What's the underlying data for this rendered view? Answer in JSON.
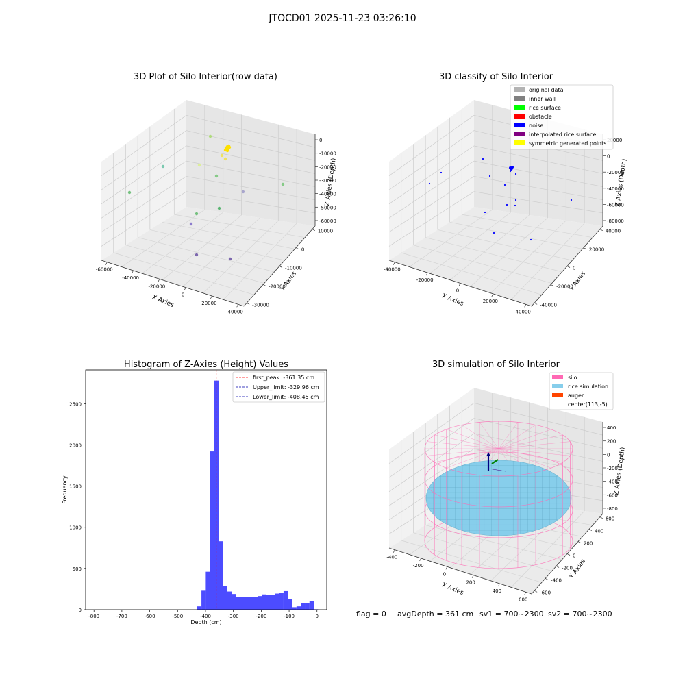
{
  "figure": {
    "suptitle": "JTOCD01 2025-11-23 03:26:10",
    "footer": {
      "flag": "flag = 0",
      "avg": "avgDepth = 361 cm",
      "sv1": "sv1 = 700~2300",
      "sv2": "sv2 = 700~2300"
    }
  },
  "chart_data": [
    {
      "type": "scatter3d",
      "title": "3D Plot of Silo Interior(row data)",
      "xlabel": "X Axies",
      "ylabel": "Y Axies",
      "zlabel": "Z Axies (Depth)",
      "x_ticks": [
        -60000,
        -40000,
        -20000,
        0,
        20000,
        40000
      ],
      "y_ticks": [
        -30000,
        -20000,
        -10000,
        0,
        10000
      ],
      "z_ticks": [
        -60000,
        -50000,
        -40000,
        -30000,
        -20000,
        -10000,
        0
      ],
      "point_colors": [
        "#5fb96b",
        "#66c2a5",
        "#a6d96a",
        "#d9ef8b",
        "#74c476",
        "#41ab5d",
        "#7b68c8",
        "#6a51a3",
        "#9e9ac8",
        "#f1e04a",
        "#fee000"
      ]
    },
    {
      "type": "scatter3d",
      "title": "3D classify of Silo Interior",
      "xlabel": "X Axies",
      "ylabel": "Y Axies",
      "zlabel": "Z Axies (Depth)",
      "x_ticks": [
        -40000,
        -20000,
        0,
        20000,
        40000
      ],
      "y_ticks": [
        -40000,
        -20000,
        0,
        20000,
        40000
      ],
      "z_ticks": [
        -80000,
        -60000,
        -40000,
        -20000,
        0,
        20000
      ],
      "legend": [
        {
          "label": "original data",
          "color": "#b3b3b3"
        },
        {
          "label": "inner wall",
          "color": "#808080"
        },
        {
          "label": "rice surface",
          "color": "#00ff00"
        },
        {
          "label": "obstacle",
          "color": "#ff0000"
        },
        {
          "label": "noise",
          "color": "#0000ff"
        },
        {
          "label": "interpolated rice surface",
          "color": "#800080"
        },
        {
          "label": "symmetric generated points",
          "color": "#ffff00"
        }
      ]
    },
    {
      "type": "bar",
      "title": "Histogram of Z-Axies (Height) Values",
      "xlabel": "Depth (cm)",
      "ylabel": "Frequency",
      "xlim": [
        -830,
        35
      ],
      "ylim": [
        0,
        2910
      ],
      "x_ticks": [
        -800,
        -700,
        -600,
        -500,
        -400,
        -300,
        -200,
        -100,
        0
      ],
      "y_ticks": [
        0,
        500,
        1000,
        1500,
        2000,
        2500
      ],
      "bar_color": "#0000ff",
      "bin_width": 15.5,
      "bins": [
        [
          -430,
          40
        ],
        [
          -414.5,
          230
        ],
        [
          -399,
          460
        ],
        [
          -383.5,
          1920
        ],
        [
          -368,
          2780
        ],
        [
          -352.5,
          830
        ],
        [
          -337,
          290
        ],
        [
          -321.5,
          220
        ],
        [
          -306,
          190
        ],
        [
          -290.5,
          155
        ],
        [
          -275,
          150
        ],
        [
          -259.5,
          150
        ],
        [
          -244,
          150
        ],
        [
          -228.5,
          150
        ],
        [
          -213,
          165
        ],
        [
          -197.5,
          185
        ],
        [
          -182,
          175
        ],
        [
          -166.5,
          180
        ],
        [
          -151,
          195
        ],
        [
          -135.5,
          205
        ],
        [
          -120,
          225
        ],
        [
          -104.5,
          125
        ],
        [
          -89,
          30
        ],
        [
          -73.5,
          40
        ],
        [
          -58,
          80
        ],
        [
          -42.5,
          75
        ],
        [
          -27,
          100
        ],
        [
          -11.5,
          5
        ]
      ],
      "vlines": [
        {
          "label": "first_peak: -361.35 cm",
          "x": -361.35,
          "color": "#ff0000"
        },
        {
          "label": "Upper_limit: -329.96 cm",
          "x": -329.96,
          "color": "#0000aa"
        },
        {
          "label": "Lower_limit: -408.45 cm",
          "x": -408.45,
          "color": "#0000aa"
        }
      ]
    },
    {
      "type": "surface3d",
      "title": "3D simulation of Silo Interior",
      "xlabel": "X Axies",
      "ylabel": "Y Axies",
      "zlabel": "Z Axies (Depth)",
      "x_ticks": [
        -400,
        -200,
        0,
        200,
        400,
        600
      ],
      "y_ticks": [
        -600,
        -400,
        -200,
        0,
        200,
        400,
        600
      ],
      "z_ticks": [
        -800,
        -600,
        -400,
        -200,
        0,
        200,
        400
      ],
      "legend": [
        {
          "label": "silo",
          "color": "#ff69b4"
        },
        {
          "label": "rice simulation",
          "color": "#87ceeb"
        },
        {
          "label": "auger",
          "color": "#ff4500"
        },
        {
          "label": "center(113,-5)",
          "color": ""
        }
      ]
    }
  ]
}
